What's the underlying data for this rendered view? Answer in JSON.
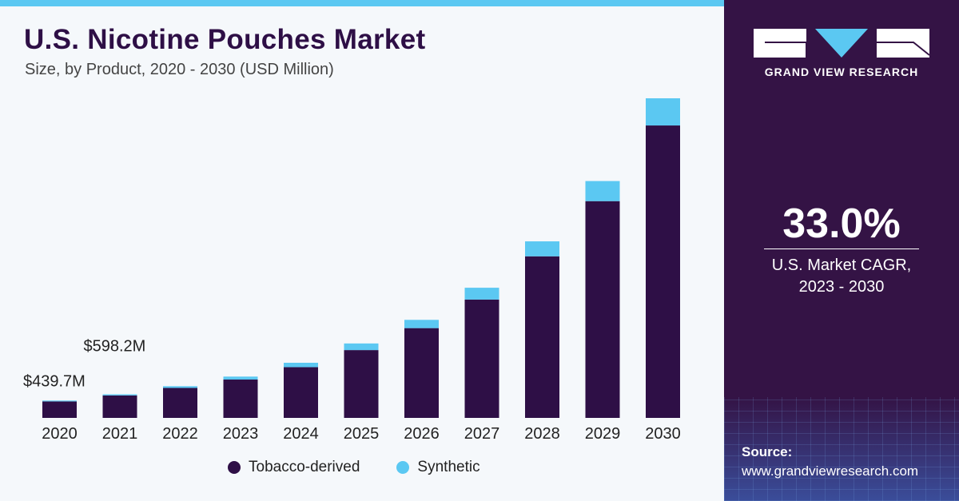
{
  "header": {
    "title": "U.S. Nicotine Pouches Market",
    "subtitle": "Size, by Product, 2020 - 2030 (USD Million)"
  },
  "chart_data": {
    "type": "bar",
    "stacked": true,
    "categories": [
      "2020",
      "2021",
      "2022",
      "2023",
      "2024",
      "2025",
      "2026",
      "2027",
      "2028",
      "2029",
      "2030"
    ],
    "series": [
      {
        "name": "Tobacco-derived",
        "color": "#2e0f46",
        "values": [
          418,
          570,
          760,
          973,
          1287,
          1721,
          2278,
          3003,
          4100,
          5500,
          7420
        ]
      },
      {
        "name": "Synthetic",
        "color": "#5bc8f2",
        "values": [
          22,
          28,
          44,
          75,
          112,
          168,
          210,
          300,
          380,
          510,
          690
        ]
      }
    ],
    "data_labels": [
      {
        "category": "2020",
        "text": "$439.7M"
      },
      {
        "category": "2021",
        "text": "$598.2M"
      }
    ],
    "ylim": [
      0,
      8110
    ],
    "grid": false,
    "legend_position": "bottom"
  },
  "legend": {
    "items": [
      {
        "label": "Tobacco-derived",
        "color": "#2e0f46"
      },
      {
        "label": "Synthetic",
        "color": "#5bc8f2"
      }
    ]
  },
  "sidebar": {
    "logo_text": "GRAND VIEW RESEARCH",
    "cagr_value": "33.0%",
    "cagr_label_line1": "U.S. Market CAGR,",
    "cagr_label_line2": "2023 - 2030",
    "source_label": "Source:",
    "source_url": "www.grandviewresearch.com"
  },
  "colors": {
    "brand_dark": "#341345",
    "accent": "#5bc8f2"
  }
}
